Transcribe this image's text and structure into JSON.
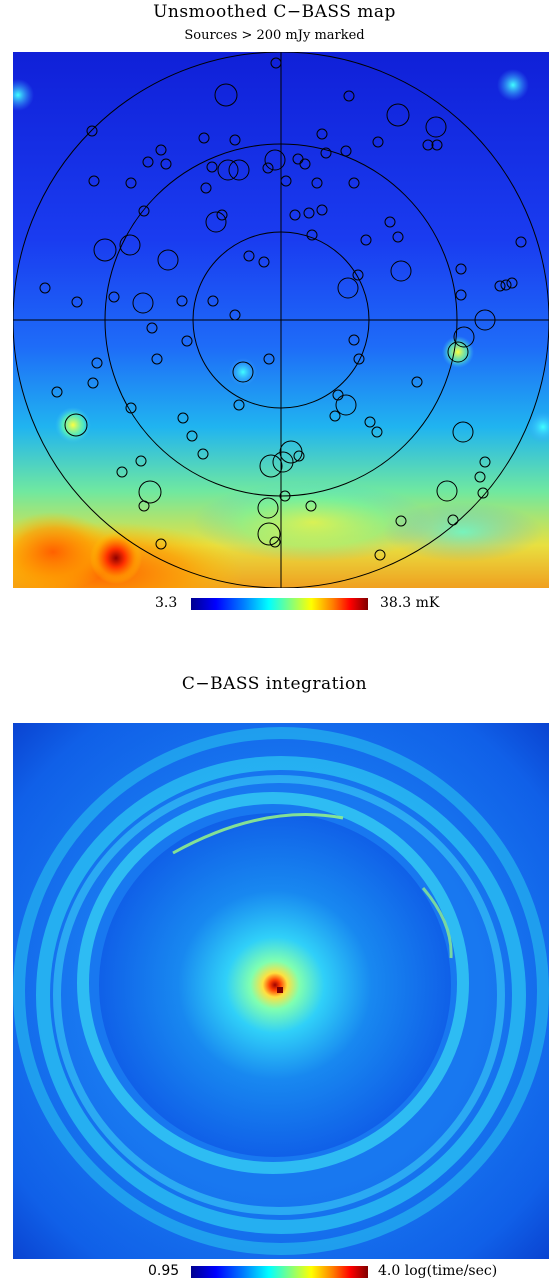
{
  "panel_top": {
    "title": "Unsmoothed C−BASS map",
    "subtitle": "Sources > 200 mJy marked",
    "colorbar": {
      "min_label": "3.3",
      "max_label": "38.3 mK"
    }
  },
  "panel_bottom": {
    "title": "C−BASS integration",
    "colorbar": {
      "min_label": "0.95",
      "max_label": "4.0 log(time/sec)"
    }
  },
  "colors": {
    "colormap": [
      "#00008f",
      "#0000ff",
      "#0080ff",
      "#00ffff",
      "#80ff80",
      "#ffff00",
      "#ff8000",
      "#ff0000",
      "#800000"
    ]
  }
}
